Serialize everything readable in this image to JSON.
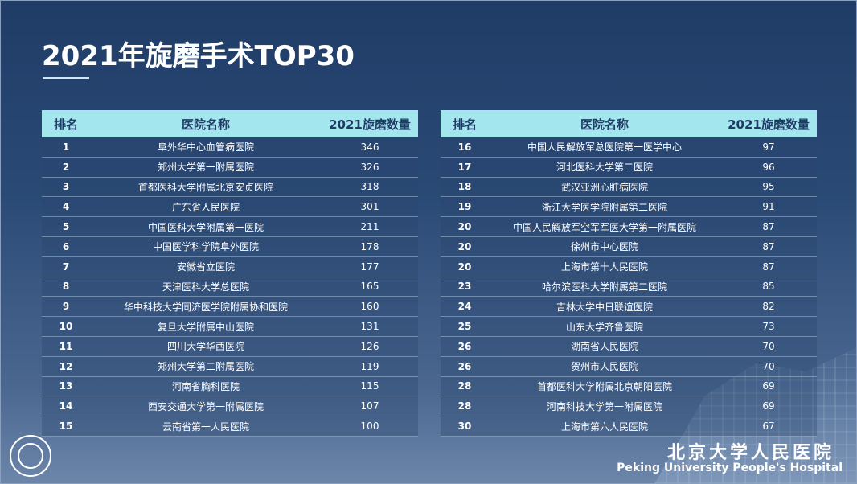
{
  "title": "2021年旋磨手术TOP30",
  "headers": {
    "rank": "排名",
    "name": "医院名称",
    "count": "2021旋磨数量"
  },
  "left_rows": [
    {
      "rank": "1",
      "name": "阜外华中心血管病医院",
      "count": "346"
    },
    {
      "rank": "2",
      "name": "郑州大学第一附属医院",
      "count": "326"
    },
    {
      "rank": "3",
      "name": "首都医科大学附属北京安贞医院",
      "count": "318"
    },
    {
      "rank": "4",
      "name": "广东省人民医院",
      "count": "301"
    },
    {
      "rank": "5",
      "name": "中国医科大学附属第一医院",
      "count": "211"
    },
    {
      "rank": "6",
      "name": "中国医学科学院阜外医院",
      "count": "178"
    },
    {
      "rank": "7",
      "name": "安徽省立医院",
      "count": "177"
    },
    {
      "rank": "8",
      "name": "天津医科大学总医院",
      "count": "165"
    },
    {
      "rank": "9",
      "name": "华中科技大学同济医学院附属协和医院",
      "count": "160"
    },
    {
      "rank": "10",
      "name": "复旦大学附属中山医院",
      "count": "131"
    },
    {
      "rank": "11",
      "name": "四川大学华西医院",
      "count": "126"
    },
    {
      "rank": "12",
      "name": "郑州大学第二附属医院",
      "count": "119"
    },
    {
      "rank": "13",
      "name": "河南省胸科医院",
      "count": "115"
    },
    {
      "rank": "14",
      "name": "西安交通大学第一附属医院",
      "count": "107"
    },
    {
      "rank": "15",
      "name": "云南省第一人民医院",
      "count": "100"
    }
  ],
  "right_rows": [
    {
      "rank": "16",
      "name": "中国人民解放军总医院第一医学中心",
      "count": "97"
    },
    {
      "rank": "17",
      "name": "河北医科大学第二医院",
      "count": "96"
    },
    {
      "rank": "18",
      "name": "武汉亚洲心脏病医院",
      "count": "95"
    },
    {
      "rank": "19",
      "name": "浙江大学医学院附属第二医院",
      "count": "91"
    },
    {
      "rank": "20",
      "name": "中国人民解放军空军军医大学第一附属医院",
      "count": "87"
    },
    {
      "rank": "20",
      "name": "徐州市中心医院",
      "count": "87"
    },
    {
      "rank": "20",
      "name": "上海市第十人民医院",
      "count": "87"
    },
    {
      "rank": "23",
      "name": "哈尔滨医科大学附属第二医院",
      "count": "85"
    },
    {
      "rank": "24",
      "name": "吉林大学中日联谊医院",
      "count": "82"
    },
    {
      "rank": "25",
      "name": "山东大学齐鲁医院",
      "count": "73"
    },
    {
      "rank": "26",
      "name": "湖南省人民医院",
      "count": "70"
    },
    {
      "rank": "26",
      "name": "贺州市人民医院",
      "count": "70"
    },
    {
      "rank": "28",
      "name": "首都医科大学附属北京朝阳医院",
      "count": "69"
    },
    {
      "rank": "28",
      "name": "河南科技大学第一附属医院",
      "count": "69"
    },
    {
      "rank": "30",
      "name": "上海市第六人民医院",
      "count": "67"
    }
  ],
  "brand": {
    "cn": "北京大学人民医院",
    "en": "Peking University People's Hospital"
  },
  "colors": {
    "header_bg": "#a3e6ee",
    "header_text": "#1f3c66",
    "bg_top": "#1f3c66"
  }
}
